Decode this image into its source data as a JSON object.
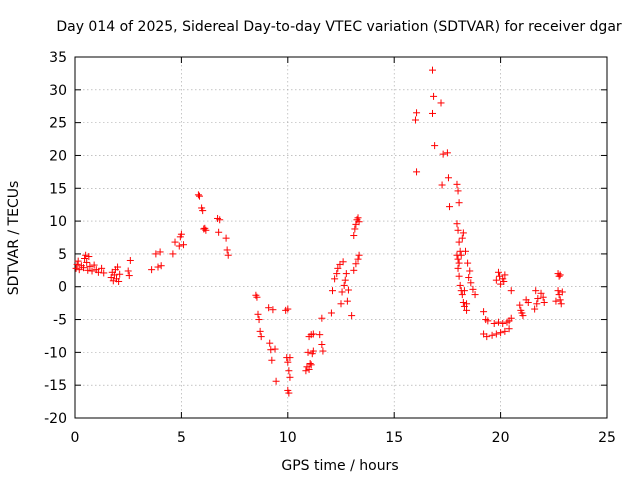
{
  "chart_data": {
    "type": "scatter",
    "title": "Day 014 of 2025, Sidereal Day-to-day VTEC variation (SDTVAR) for receiver dgar",
    "xlabel": "GPS time / hours",
    "ylabel": "SDTVAR / TECUs",
    "xlim": [
      0,
      25
    ],
    "ylim": [
      -20,
      35
    ],
    "xticks": [
      "0",
      "5",
      "10",
      "15",
      "20",
      "25"
    ],
    "yticks": [
      "-20",
      "-15",
      "-10",
      "-5",
      "0",
      "5",
      "10",
      "15",
      "20",
      "25",
      "30",
      "35"
    ],
    "grid": true,
    "marker": "+",
    "color": "#ff0000",
    "series": [
      {
        "name": "SDTVAR",
        "points": [
          [
            0.05,
            2.8
          ],
          [
            0.1,
            3.4
          ],
          [
            0.15,
            3.9
          ],
          [
            0.2,
            2.6
          ],
          [
            0.3,
            3.2
          ],
          [
            0.4,
            2.9
          ],
          [
            0.45,
            4.3
          ],
          [
            0.5,
            4.8
          ],
          [
            0.55,
            3.7
          ],
          [
            0.6,
            2.5
          ],
          [
            0.65,
            4.6
          ],
          [
            0.7,
            3.1
          ],
          [
            0.8,
            2.4
          ],
          [
            0.9,
            3.3
          ],
          [
            1.0,
            2.6
          ],
          [
            1.1,
            2.2
          ],
          [
            1.25,
            2.8
          ],
          [
            1.35,
            2.1
          ],
          [
            1.7,
            1.4
          ],
          [
            1.75,
            2.2
          ],
          [
            1.8,
            0.9
          ],
          [
            1.85,
            1.8
          ],
          [
            1.9,
            2.6
          ],
          [
            1.95,
            1.2
          ],
          [
            2.0,
            3.0
          ],
          [
            2.05,
            0.8
          ],
          [
            2.1,
            1.9
          ],
          [
            2.5,
            2.4
          ],
          [
            2.55,
            1.7
          ],
          [
            2.6,
            4.0
          ],
          [
            3.6,
            2.6
          ],
          [
            3.8,
            5.0
          ],
          [
            3.9,
            3.0
          ],
          [
            4.0,
            5.3
          ],
          [
            4.05,
            3.2
          ],
          [
            4.6,
            5.0
          ],
          [
            4.7,
            6.8
          ],
          [
            4.9,
            6.2
          ],
          [
            4.95,
            7.6
          ],
          [
            5.0,
            8.0
          ],
          [
            5.1,
            6.4
          ],
          [
            5.8,
            14.0
          ],
          [
            5.85,
            13.8
          ],
          [
            5.95,
            12.0
          ],
          [
            6.0,
            11.6
          ],
          [
            6.05,
            8.8
          ],
          [
            6.1,
            8.9
          ],
          [
            6.15,
            8.6
          ],
          [
            6.7,
            10.4
          ],
          [
            6.8,
            10.2
          ],
          [
            6.75,
            8.3
          ],
          [
            7.1,
            7.4
          ],
          [
            7.15,
            5.6
          ],
          [
            7.2,
            4.8
          ],
          [
            8.5,
            -1.3
          ],
          [
            8.55,
            -1.6
          ],
          [
            8.6,
            -4.2
          ],
          [
            8.65,
            -5.0
          ],
          [
            8.7,
            -6.8
          ],
          [
            8.75,
            -7.6
          ],
          [
            9.1,
            -3.2
          ],
          [
            9.15,
            -8.6
          ],
          [
            9.2,
            -9.6
          ],
          [
            9.25,
            -11.2
          ],
          [
            9.3,
            -3.5
          ],
          [
            9.4,
            -9.5
          ],
          [
            9.45,
            -14.4
          ],
          [
            9.9,
            -3.6
          ],
          [
            10.0,
            -3.4
          ],
          [
            9.95,
            -10.8
          ],
          [
            10.0,
            -11.5
          ],
          [
            10.05,
            -12.8
          ],
          [
            10.1,
            -13.8
          ],
          [
            10.0,
            -15.8
          ],
          [
            10.05,
            -16.2
          ],
          [
            10.1,
            -10.8
          ],
          [
            10.85,
            -12.8
          ],
          [
            10.9,
            -12.2
          ],
          [
            11.0,
            -12.6
          ],
          [
            11.05,
            -11.7
          ],
          [
            11.1,
            -11.9
          ],
          [
            11.15,
            -10.2
          ],
          [
            10.95,
            -10.0
          ],
          [
            11.2,
            -9.8
          ],
          [
            11.0,
            -7.6
          ],
          [
            11.1,
            -7.3
          ],
          [
            11.2,
            -7.2
          ],
          [
            11.5,
            -7.3
          ],
          [
            11.6,
            -8.8
          ],
          [
            11.65,
            -9.8
          ],
          [
            11.6,
            -4.8
          ],
          [
            12.05,
            -4.0
          ],
          [
            12.1,
            -0.6
          ],
          [
            12.2,
            1.2
          ],
          [
            12.3,
            2.0
          ],
          [
            12.35,
            2.8
          ],
          [
            12.45,
            3.4
          ],
          [
            12.5,
            -2.6
          ],
          [
            12.55,
            -0.8
          ],
          [
            12.65,
            0.2
          ],
          [
            12.7,
            1.0
          ],
          [
            12.75,
            2.0
          ],
          [
            12.8,
            -2.2
          ],
          [
            12.85,
            -0.5
          ],
          [
            12.6,
            3.8
          ],
          [
            13.0,
            -4.4
          ],
          [
            13.1,
            7.8
          ],
          [
            13.15,
            8.8
          ],
          [
            13.2,
            9.5
          ],
          [
            13.25,
            10.2
          ],
          [
            13.3,
            10.5
          ],
          [
            13.35,
            9.9
          ],
          [
            13.1,
            2.5
          ],
          [
            13.2,
            3.5
          ],
          [
            13.3,
            4.2
          ],
          [
            13.35,
            4.8
          ],
          [
            16.05,
            17.5
          ],
          [
            16.0,
            25.4
          ],
          [
            16.05,
            26.5
          ],
          [
            16.8,
            33.0
          ],
          [
            16.85,
            29.0
          ],
          [
            16.8,
            26.4
          ],
          [
            16.9,
            21.5
          ],
          [
            17.2,
            28.0
          ],
          [
            17.25,
            15.5
          ],
          [
            17.3,
            20.2
          ],
          [
            17.5,
            20.4
          ],
          [
            17.55,
            16.6
          ],
          [
            17.6,
            12.2
          ],
          [
            17.95,
            15.6
          ],
          [
            18.0,
            14.6
          ],
          [
            18.05,
            12.8
          ],
          [
            17.95,
            9.6
          ],
          [
            18.0,
            8.6
          ],
          [
            18.05,
            6.8
          ],
          [
            18.1,
            5.4
          ],
          [
            18.15,
            4.8
          ],
          [
            17.95,
            4.8
          ],
          [
            18.0,
            4.2
          ],
          [
            18.05,
            3.6
          ],
          [
            18.0,
            2.8
          ],
          [
            18.05,
            1.6
          ],
          [
            18.1,
            0.2
          ],
          [
            18.15,
            -0.6
          ],
          [
            18.2,
            -1.2
          ],
          [
            18.25,
            -2.4
          ],
          [
            18.3,
            -3.0
          ],
          [
            18.3,
            -0.6
          ],
          [
            18.4,
            -3.6
          ],
          [
            18.5,
            1.4
          ],
          [
            18.6,
            0.6
          ],
          [
            18.7,
            -0.4
          ],
          [
            18.8,
            -1.2
          ],
          [
            18.4,
            -2.6
          ],
          [
            18.35,
            5.4
          ],
          [
            18.45,
            3.6
          ],
          [
            18.55,
            2.4
          ],
          [
            18.2,
            7.4
          ],
          [
            18.25,
            8.2
          ],
          [
            19.2,
            -3.8
          ],
          [
            19.3,
            -5.0
          ],
          [
            19.4,
            -5.2
          ],
          [
            19.2,
            -7.2
          ],
          [
            19.35,
            -7.6
          ],
          [
            19.6,
            -7.4
          ],
          [
            19.8,
            -7.2
          ],
          [
            20.0,
            -7.0
          ],
          [
            20.2,
            -6.8
          ],
          [
            19.7,
            -5.6
          ],
          [
            19.9,
            -5.4
          ],
          [
            20.1,
            -5.6
          ],
          [
            20.3,
            -5.4
          ],
          [
            19.8,
            1.0
          ],
          [
            19.9,
            2.2
          ],
          [
            19.95,
            1.6
          ],
          [
            20.0,
            0.4
          ],
          [
            20.1,
            1.2
          ],
          [
            20.15,
            0.8
          ],
          [
            20.2,
            1.8
          ],
          [
            20.5,
            -0.6
          ],
          [
            20.4,
            -5.2
          ],
          [
            20.5,
            -4.8
          ],
          [
            20.4,
            -6.4
          ],
          [
            20.9,
            -2.8
          ],
          [
            20.95,
            -3.6
          ],
          [
            21.0,
            -4.0
          ],
          [
            21.05,
            -4.4
          ],
          [
            21.2,
            -2.0
          ],
          [
            21.3,
            -2.4
          ],
          [
            21.6,
            -3.4
          ],
          [
            21.7,
            -2.6
          ],
          [
            21.75,
            -1.8
          ],
          [
            21.65,
            -0.6
          ],
          [
            21.9,
            -1.0
          ],
          [
            22.0,
            -1.6
          ],
          [
            22.05,
            -2.4
          ],
          [
            22.7,
            2.0
          ],
          [
            22.75,
            1.6
          ],
          [
            22.8,
            1.8
          ],
          [
            22.7,
            -0.6
          ],
          [
            22.75,
            -1.2
          ],
          [
            22.8,
            -2.0
          ],
          [
            22.85,
            -2.6
          ],
          [
            22.6,
            -2.2
          ],
          [
            22.9,
            -0.8
          ]
        ]
      }
    ]
  }
}
